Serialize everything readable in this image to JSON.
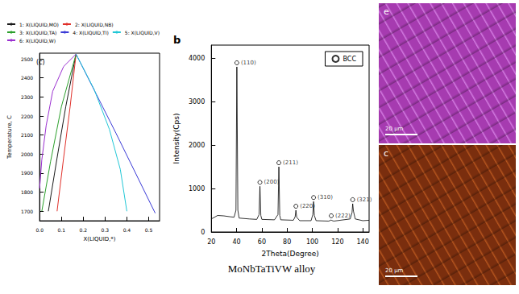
{
  "chart_data": [
    {
      "type": "line",
      "title": "(c)",
      "xlabel": "X(LIQUID,*)",
      "ylabel": "Temperature, C",
      "xlim": [
        0,
        0.55
      ],
      "xticks": [
        {
          "value": 0,
          "label": "0.0"
        },
        0.1,
        0.2,
        0.3,
        0.4,
        0.5
      ],
      "ylim": [
        1650,
        2530
      ],
      "yticks": [
        1700,
        1800,
        1900,
        2000,
        2100,
        2200,
        2300,
        2400,
        2500
      ],
      "grid": false,
      "legend": "top",
      "series": [
        {
          "name": "1: X(LIQUID,MO)",
          "color": "#1a1a1a",
          "line_style": "solid",
          "x": [
            0.167,
            0.12,
            0.08,
            0.04
          ],
          "values": [
            2525,
            2250,
            1980,
            1700
          ]
        },
        {
          "name": "2: X(LIQUID,NB)",
          "color": "#e0302a",
          "line_style": "solid",
          "x": [
            0.167,
            0.14,
            0.11,
            0.08
          ],
          "values": [
            2525,
            2250,
            1980,
            1700
          ]
        },
        {
          "name": "3: X(LIQUID,TA)",
          "color": "#2ca02c",
          "line_style": "solid",
          "x": [
            0.167,
            0.1,
            0.05,
            0.01
          ],
          "values": [
            2525,
            2250,
            1960,
            1700
          ]
        },
        {
          "name": "4: X(LIQUID,TI)",
          "color": "#3b3bd6",
          "line_style": "solid",
          "x": [
            0.167,
            0.35,
            0.53
          ],
          "values": [
            2525,
            2110,
            1690
          ]
        },
        {
          "name": "5: X(LIQUID,V)",
          "color": "#22c7d6",
          "line_style": "solid",
          "x": [
            0.167,
            0.25,
            0.32,
            0.37,
            0.4
          ],
          "values": [
            2525,
            2340,
            2130,
            1920,
            1700
          ]
        },
        {
          "name": "6: X(LIQUID,W)",
          "color": "#9b30d0",
          "line_style": "solid",
          "x": [
            0.167,
            0.11,
            0.06,
            0.03,
            0.01,
            0.0
          ],
          "values": [
            2525,
            2460,
            2330,
            2150,
            1970,
            1820
          ]
        }
      ]
    },
    {
      "type": "line",
      "title": "b",
      "xlabel": "2Theta(Degree)",
      "ylabel": "Intensity(Cps)",
      "xlim": [
        20,
        145
      ],
      "xticks": [
        20,
        40,
        60,
        80,
        100,
        120,
        140
      ],
      "ylim": [
        0,
        4300
      ],
      "yticks": [
        0,
        1000,
        2000,
        3000,
        4000
      ],
      "grid": false,
      "legend": "top-right",
      "series": [
        {
          "type": "line",
          "color": "#000000",
          "line_style": "solid",
          "x": [
            20,
            25,
            30,
            35,
            38,
            39.5,
            40.2,
            41,
            42,
            50,
            56,
            57.8,
            58.5,
            59.2,
            60,
            70,
            72.8,
            73.5,
            74.2,
            75,
            85,
            86.4,
            87,
            87.6,
            90,
            99,
            100.4,
            101,
            101.6,
            103,
            113,
            114.6,
            115,
            115.4,
            117,
            130,
            131.5,
            132,
            132.6,
            134,
            140,
            145
          ],
          "values": [
            300,
            380,
            370,
            350,
            340,
            500,
            3800,
            500,
            320,
            300,
            290,
            400,
            1050,
            380,
            290,
            280,
            400,
            1500,
            380,
            280,
            270,
            350,
            500,
            340,
            260,
            260,
            400,
            700,
            380,
            260,
            250,
            270,
            280,
            265,
            250,
            300,
            450,
            650,
            480,
            300,
            260,
            270
          ]
        },
        {
          "name": "BCC",
          "type": "scatter",
          "marker": "circle",
          "color": "#000000",
          "x": [
            40.2,
            58.5,
            73.5,
            87,
            101,
            115,
            132
          ],
          "values": [
            3800,
            1050,
            1500,
            500,
            700,
            280,
            650
          ],
          "point_labels": [
            "(110)",
            "(200)",
            "(211)",
            "(220)",
            "(310)",
            "(222)",
            "(321)"
          ]
        }
      ]
    }
  ],
  "caption": "MoNbTaTiVW alloy",
  "maps": [
    {
      "label": "e",
      "scale_bar": "20 µm",
      "color": "#a63bb0",
      "color2": "#d27be0"
    },
    {
      "label": "c",
      "scale_bar": "20 µm",
      "color": "#7a2e0e",
      "color2": "#b5551e"
    }
  ]
}
